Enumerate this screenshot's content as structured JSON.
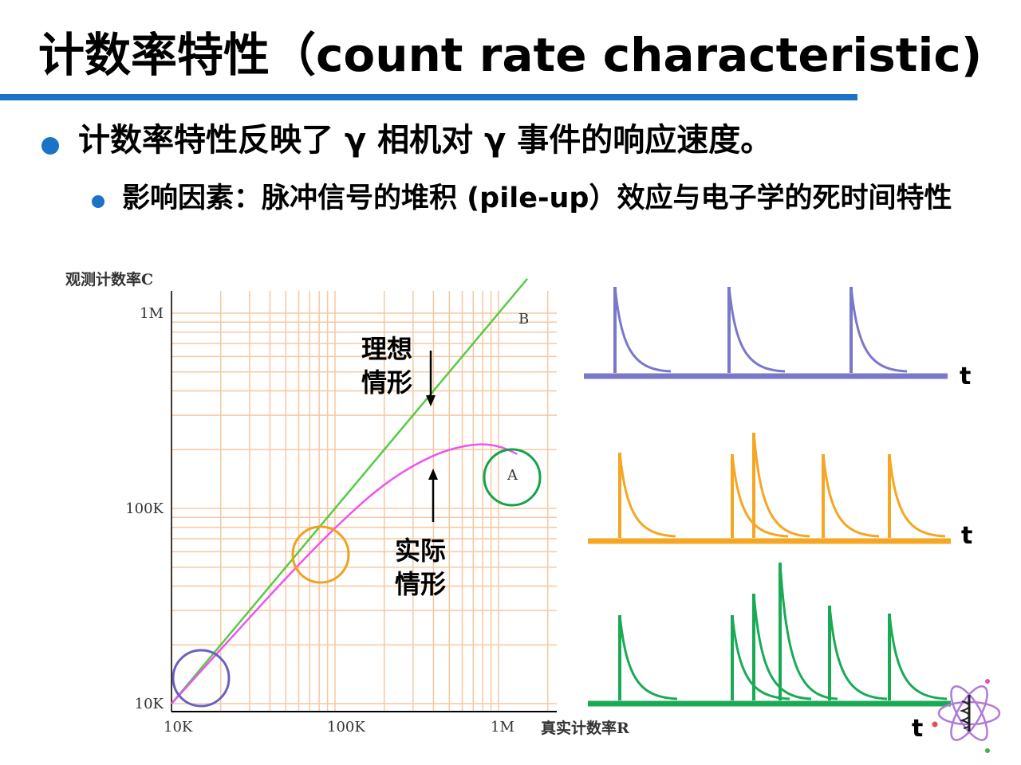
{
  "slide": {
    "title": "计数率特性（count rate characteristic)",
    "bullet1": "计数率特性反映了 γ 相机对 γ 事件的响应速度。",
    "bullet2": "影响因素：脉冲信号的堆积 (pile-up）效应与电子学的死时间特性"
  },
  "chart": {
    "ylabel": "观测计数率C",
    "xlabel": "真实计数率R",
    "x_ticks": [
      "10K",
      "100K",
      "1M"
    ],
    "y_ticks": [
      "10K",
      "100K",
      "1M"
    ],
    "label_B": "B",
    "label_A": "A",
    "ideal_line1": "理想",
    "ideal_line2": "情形",
    "actual_line1": "实际",
    "actual_line2": "情形"
  },
  "chart_data": {
    "type": "line",
    "x_scale": "log",
    "y_scale": "log",
    "xlabel": "真实计数率R",
    "ylabel": "观测计数率C",
    "x_ticks": [
      "10K",
      "100K",
      "1M"
    ],
    "y_ticks": [
      "10K",
      "100K",
      "1M"
    ],
    "series": [
      {
        "name": "B",
        "x": [
          10000,
          1500000
        ],
        "y": [
          10000,
          1500000
        ]
      },
      {
        "name": "A",
        "x": [
          10000,
          20000,
          50000,
          100000,
          200000,
          400000,
          700000,
          1000000,
          1300000
        ],
        "y": [
          10000,
          19000,
          44000,
          80000,
          135000,
          190000,
          215000,
          210000,
          190000
        ]
      }
    ],
    "grid": true
  },
  "pulses": {
    "t_label": "t",
    "row1_color": "#7a78c8",
    "row2_color": "#f5a623",
    "row3_color": "#1aaa55"
  },
  "colors": {
    "accent": "#1a73c6",
    "ideal_line": "#55cc44",
    "actual_curve": "#ee55ee",
    "grid": "#f6c8a0",
    "circle_purple": "#6a60c0",
    "circle_orange": "#f0a020",
    "circle_green": "#12a34a"
  },
  "logo": {
    "icon": "atom-logo-icon"
  }
}
